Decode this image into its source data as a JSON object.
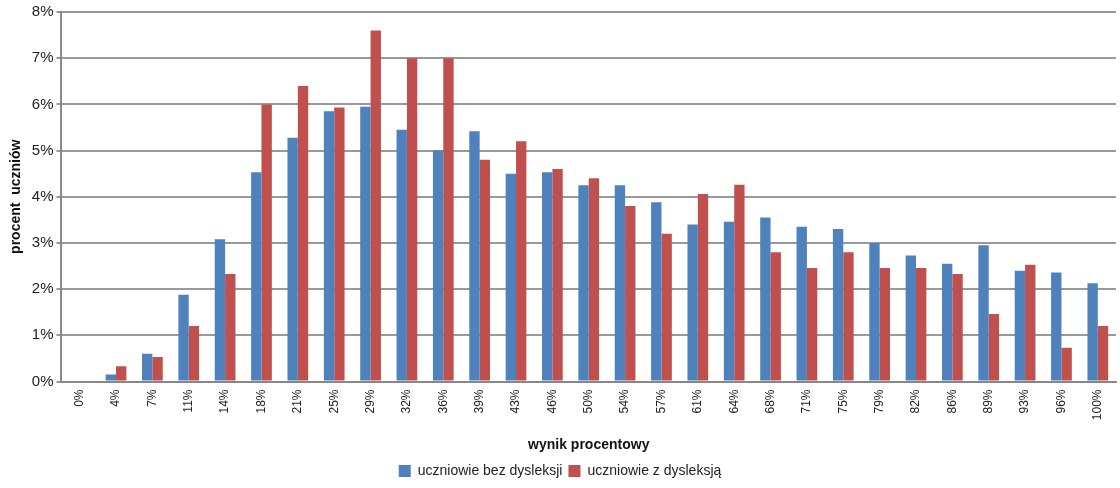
{
  "chart_data": {
    "type": "bar",
    "xlabel": "wynik procentowy",
    "ylabel": "procent  uczniów",
    "categories": [
      "0%",
      "4%",
      "7%",
      "11%",
      "14%",
      "18%",
      "21%",
      "25%",
      "29%",
      "32%",
      "36%",
      "39%",
      "43%",
      "46%",
      "50%",
      "54%",
      "57%",
      "61%",
      "64%",
      "68%",
      "71%",
      "75%",
      "79%",
      "82%",
      "86%",
      "89%",
      "93%",
      "96%",
      "100%"
    ],
    "series": [
      {
        "name": "uczniowie bez dysleksji",
        "color": "#4f81bd",
        "values": [
          0.02,
          0.15,
          0.6,
          1.88,
          3.08,
          4.53,
          5.28,
          5.85,
          5.95,
          5.45,
          5.0,
          5.42,
          4.5,
          4.53,
          4.25,
          4.25,
          3.88,
          3.4,
          3.46,
          3.55,
          3.35,
          3.3,
          3.0,
          2.73,
          2.55,
          2.95,
          2.4,
          2.36,
          2.13
        ]
      },
      {
        "name": "uczniowie z dysleksją",
        "color": "#c0504d",
        "values": [
          0,
          0.33,
          0.53,
          1.2,
          2.33,
          6.0,
          6.4,
          5.93,
          7.6,
          7.0,
          7.0,
          4.8,
          5.2,
          4.6,
          4.4,
          3.8,
          3.2,
          4.06,
          4.26,
          2.8,
          2.46,
          2.8,
          2.46,
          2.46,
          2.33,
          1.46,
          2.53,
          0.73,
          1.2
        ]
      }
    ],
    "ylim": [
      0,
      8
    ],
    "yticks": [
      {
        "value": 0,
        "label": "0%"
      },
      {
        "value": 1,
        "label": "1%"
      },
      {
        "value": 2,
        "label": "2%"
      },
      {
        "value": 3,
        "label": "3%"
      },
      {
        "value": 4,
        "label": "4%"
      },
      {
        "value": 5,
        "label": "5%"
      },
      {
        "value": 6,
        "label": "6%"
      },
      {
        "value": 7,
        "label": "7%"
      },
      {
        "value": 8,
        "label": "8%"
      }
    ],
    "grid": "y",
    "legend": "bottom"
  }
}
